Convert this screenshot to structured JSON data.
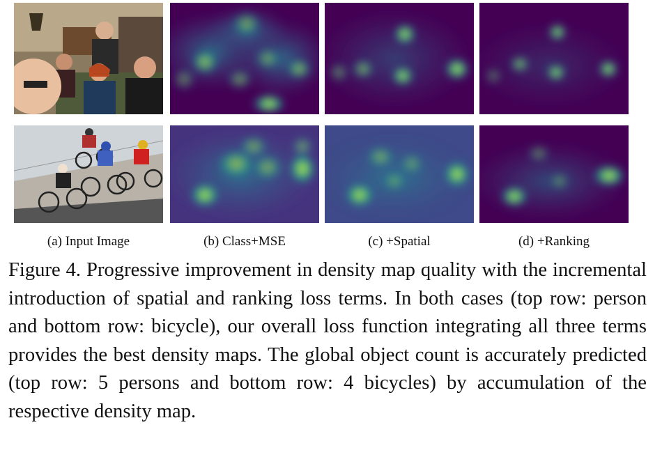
{
  "figure": {
    "panel_labels": [
      "(a) Input Image",
      "(b) Class+MSE",
      "(c) +Spatial",
      "(d) +Ranking"
    ],
    "rows": [
      {
        "object": "person",
        "count": 5
      },
      {
        "object": "bicycle",
        "count": 4
      }
    ],
    "caption": "Figure 4. Progressive improvement in density map quality with the incremental introduction of spatial and ranking loss terms. In both cases (top row: person and bottom row: bicycle), our overall loss function integrating all three terms provides the best density maps. The global object count is accurately predicted (top row: 5 persons and bottom row: 4 bicycles) by accumulation of the respective density map."
  },
  "colors": {
    "viridis_low": "#440154",
    "viridis_mid": "#21918c",
    "viridis_high": "#fde725"
  }
}
